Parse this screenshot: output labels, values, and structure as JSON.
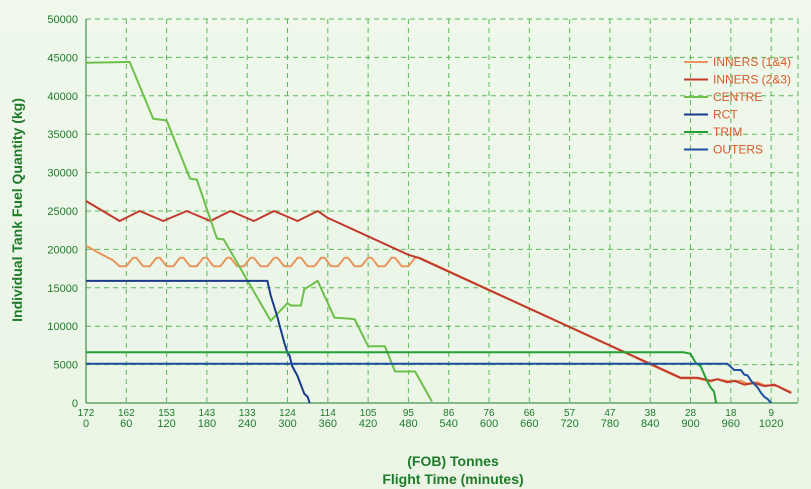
{
  "chart_data": {
    "type": "line",
    "ylabel": "Individual Tank Fuel Quantity (kg)",
    "xlabel_top": "(FOB) Tonnes",
    "xlabel": "Flight Time (minutes)",
    "xlim": [
      0,
      1060
    ],
    "ylim": [
      0,
      50000
    ],
    "yticks": [
      0,
      5000,
      10000,
      15000,
      20000,
      25000,
      30000,
      35000,
      40000,
      45000,
      50000
    ],
    "xticks": [
      0,
      60,
      120,
      180,
      240,
      300,
      360,
      420,
      480,
      540,
      600,
      660,
      720,
      780,
      840,
      900,
      960,
      1020
    ],
    "fob_ticks": [
      {
        "x": 0,
        "label": "172"
      },
      {
        "x": 60,
        "label": "162"
      },
      {
        "x": 120,
        "label": "153"
      },
      {
        "x": 180,
        "label": "143"
      },
      {
        "x": 240,
        "label": "133"
      },
      {
        "x": 300,
        "label": "124"
      },
      {
        "x": 360,
        "label": "114"
      },
      {
        "x": 420,
        "label": "105"
      },
      {
        "x": 480,
        "label": "95"
      },
      {
        "x": 540,
        "label": "86"
      },
      {
        "x": 600,
        "label": "76"
      },
      {
        "x": 660,
        "label": "66"
      },
      {
        "x": 720,
        "label": "57"
      },
      {
        "x": 780,
        "label": "47"
      },
      {
        "x": 840,
        "label": "38"
      },
      {
        "x": 900,
        "label": "28"
      },
      {
        "x": 960,
        "label": "18"
      },
      {
        "x": 1020,
        "label": "9"
      }
    ],
    "grid": true,
    "legend_position": "top-right",
    "series": [
      {
        "name": "INNERS (1&4)",
        "color": "#e8955e",
        "points": [
          [
            0,
            20500
          ],
          [
            20,
            19500
          ],
          [
            40,
            18600
          ],
          [
            50,
            17800
          ],
          [
            60,
            17800
          ],
          [
            70,
            18900
          ],
          [
            75,
            18900
          ],
          [
            85,
            17800
          ],
          [
            95,
            17800
          ],
          [
            105,
            18900
          ],
          [
            110,
            18900
          ],
          [
            120,
            17800
          ],
          [
            130,
            17800
          ],
          [
            140,
            18900
          ],
          [
            145,
            18900
          ],
          [
            155,
            17800
          ],
          [
            165,
            17800
          ],
          [
            175,
            18900
          ],
          [
            180,
            18900
          ],
          [
            190,
            17800
          ],
          [
            200,
            17800
          ],
          [
            210,
            18900
          ],
          [
            215,
            18900
          ],
          [
            225,
            17800
          ],
          [
            235,
            17800
          ],
          [
            245,
            18900
          ],
          [
            250,
            18900
          ],
          [
            260,
            17800
          ],
          [
            270,
            17800
          ],
          [
            280,
            18900
          ],
          [
            285,
            18900
          ],
          [
            295,
            17800
          ],
          [
            305,
            17800
          ],
          [
            315,
            18900
          ],
          [
            320,
            18900
          ],
          [
            330,
            17800
          ],
          [
            340,
            17800
          ],
          [
            350,
            18900
          ],
          [
            355,
            18900
          ],
          [
            365,
            17800
          ],
          [
            375,
            17800
          ],
          [
            385,
            18900
          ],
          [
            390,
            18900
          ],
          [
            400,
            17800
          ],
          [
            410,
            17800
          ],
          [
            420,
            18900
          ],
          [
            425,
            18900
          ],
          [
            435,
            17800
          ],
          [
            445,
            17800
          ],
          [
            455,
            18900
          ],
          [
            460,
            18900
          ],
          [
            470,
            17800
          ],
          [
            480,
            17800
          ],
          [
            490,
            18900
          ],
          [
            497,
            18900
          ],
          [
            885,
            3200
          ],
          [
            910,
            3200
          ],
          [
            930,
            2800
          ],
          [
            940,
            3100
          ],
          [
            960,
            2800
          ],
          [
            975,
            2900
          ],
          [
            985,
            2500
          ],
          [
            1000,
            2700
          ],
          [
            1010,
            2300
          ],
          [
            1030,
            2200
          ],
          [
            1050,
            1400
          ]
        ]
      },
      {
        "name": "INNERS (2&3)",
        "color": "#c0392b",
        "points": [
          [
            0,
            26300
          ],
          [
            50,
            23700
          ],
          [
            80,
            25000
          ],
          [
            115,
            23700
          ],
          [
            150,
            25000
          ],
          [
            185,
            23700
          ],
          [
            215,
            25000
          ],
          [
            250,
            23700
          ],
          [
            280,
            25000
          ],
          [
            315,
            23700
          ],
          [
            345,
            25000
          ],
          [
            360,
            24100
          ],
          [
            420,
            21700
          ],
          [
            480,
            19300
          ],
          [
            495,
            18900
          ],
          [
            885,
            3300
          ],
          [
            910,
            3300
          ],
          [
            930,
            2900
          ],
          [
            940,
            3100
          ],
          [
            955,
            2700
          ],
          [
            965,
            2900
          ],
          [
            980,
            2400
          ],
          [
            995,
            2600
          ],
          [
            1010,
            2200
          ],
          [
            1025,
            2400
          ],
          [
            1040,
            1700
          ],
          [
            1050,
            1300
          ]
        ]
      },
      {
        "name": "CENTRE",
        "color": "#6cc04a",
        "points": [
          [
            0,
            44300
          ],
          [
            65,
            44400
          ],
          [
            100,
            37000
          ],
          [
            120,
            36800
          ],
          [
            155,
            29200
          ],
          [
            165,
            29100
          ],
          [
            195,
            21400
          ],
          [
            205,
            21300
          ],
          [
            275,
            10700
          ],
          [
            300,
            13000
          ],
          [
            305,
            12700
          ],
          [
            320,
            12700
          ],
          [
            325,
            14800
          ],
          [
            345,
            15900
          ],
          [
            370,
            11100
          ],
          [
            390,
            11000
          ],
          [
            400,
            10900
          ],
          [
            420,
            7400
          ],
          [
            445,
            7400
          ],
          [
            460,
            4100
          ],
          [
            490,
            4100
          ],
          [
            515,
            200
          ]
        ]
      },
      {
        "name": "RCT",
        "color": "#1a3a8c",
        "points": [
          [
            0,
            15900
          ],
          [
            270,
            15900
          ],
          [
            275,
            14000
          ],
          [
            285,
            11200
          ],
          [
            288,
            10200
          ],
          [
            295,
            7900
          ],
          [
            300,
            6500
          ],
          [
            303,
            6200
          ],
          [
            307,
            4800
          ],
          [
            315,
            3500
          ],
          [
            318,
            2800
          ],
          [
            325,
            1200
          ],
          [
            330,
            800
          ],
          [
            333,
            0
          ]
        ]
      },
      {
        "name": "TRIM",
        "color": "#23a035",
        "points": [
          [
            0,
            6600
          ],
          [
            890,
            6600
          ],
          [
            900,
            6400
          ],
          [
            908,
            5200
          ],
          [
            915,
            4800
          ],
          [
            925,
            2800
          ],
          [
            930,
            2000
          ],
          [
            935,
            1500
          ],
          [
            938,
            0
          ]
        ]
      },
      {
        "name": "OUTERS",
        "color": "#1e4fa0",
        "points": [
          [
            0,
            5100
          ],
          [
            955,
            5100
          ],
          [
            965,
            4300
          ],
          [
            975,
            4300
          ],
          [
            980,
            3700
          ],
          [
            985,
            3600
          ],
          [
            990,
            2900
          ],
          [
            1000,
            2000
          ],
          [
            1005,
            1300
          ],
          [
            1010,
            800
          ],
          [
            1015,
            500
          ],
          [
            1020,
            0
          ]
        ]
      }
    ],
    "legend": [
      {
        "label": "INNERS (1&4)",
        "color": "#e8955e"
      },
      {
        "label": "INNERS (2&3)",
        "color": "#c0392b"
      },
      {
        "label": "CENTRE",
        "color": "#6cc04a"
      },
      {
        "label": "RCT",
        "color": "#1a3a8c"
      },
      {
        "label": "TRIM",
        "color": "#23a035"
      },
      {
        "label": "OUTERS",
        "color": "#1e4fa0"
      }
    ],
    "colors": {
      "grid": "#5cb85c",
      "axis_text": "#1f7a2a",
      "legend_text": "#d65a2a"
    }
  }
}
